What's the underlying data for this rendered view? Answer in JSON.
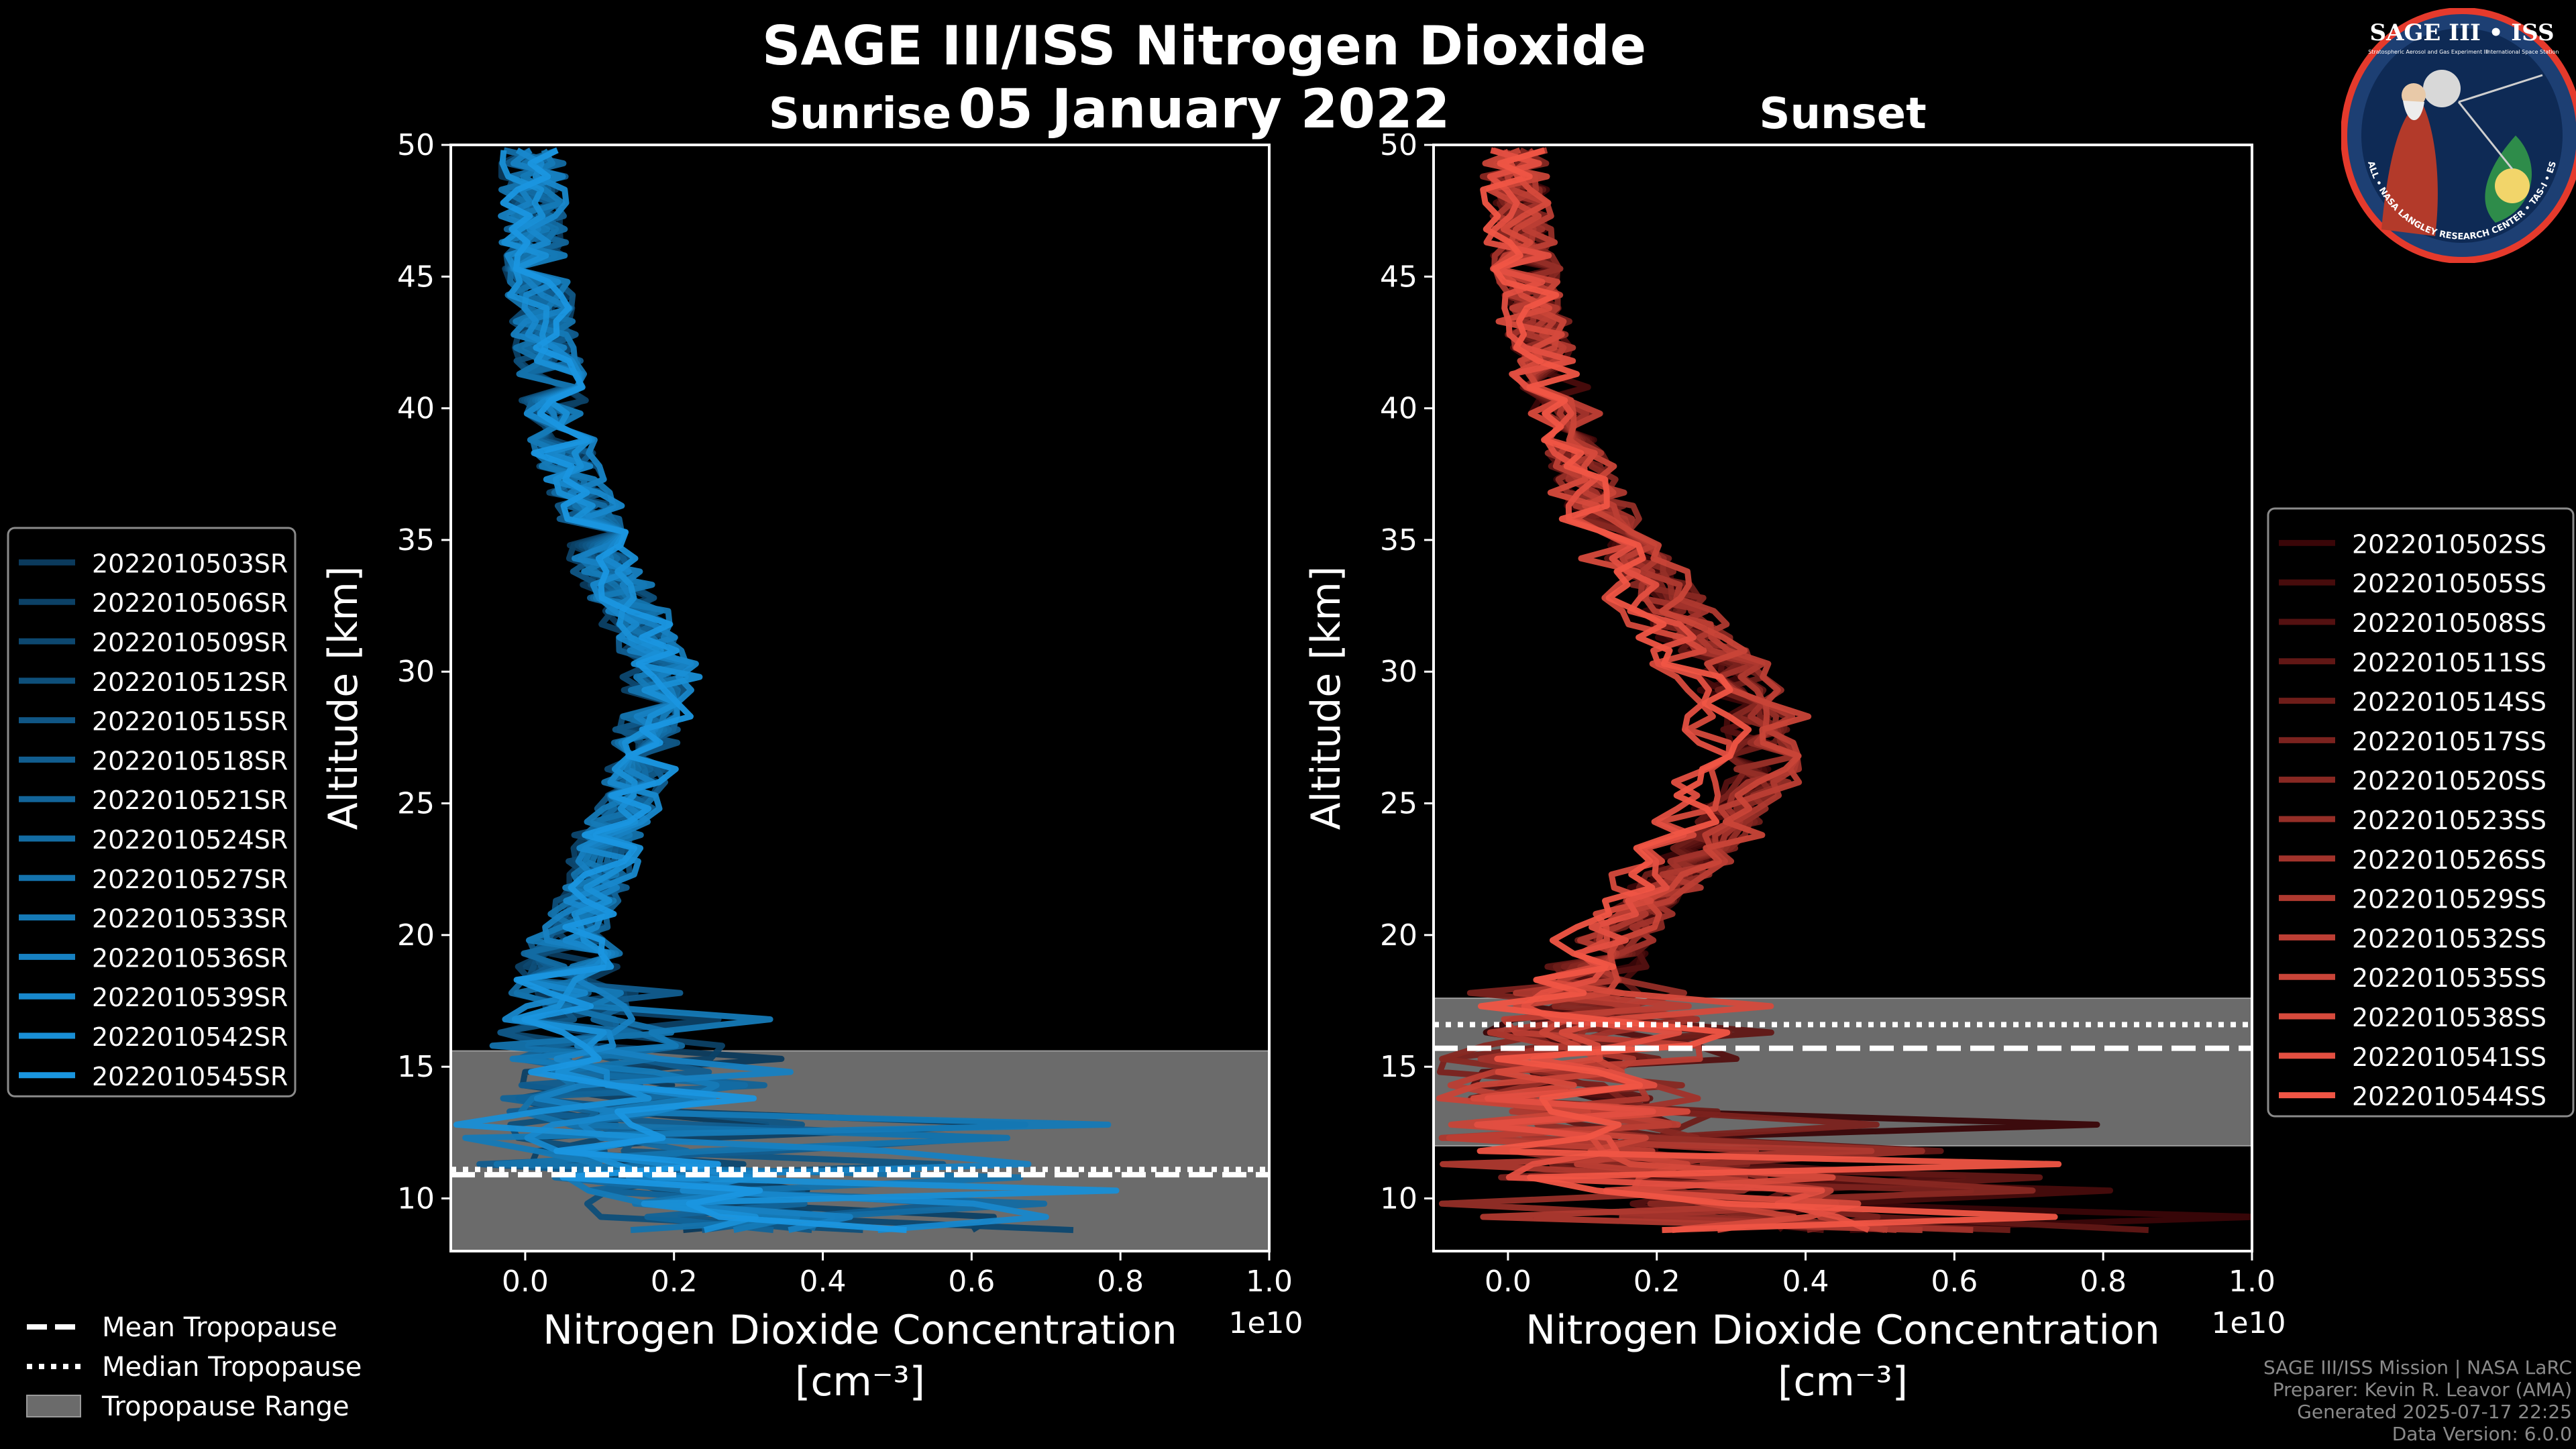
{
  "figure": {
    "title": "SAGE III/ISS Nitrogen Dioxide",
    "date": "05 January 2022",
    "credits": [
      "SAGE III/ISS Mission | NASA LaRC",
      "Preparer: Kevin R. Leavor (AMA)",
      "Generated 2025-07-17 22:25",
      "Data Version: 6.0.0"
    ],
    "logo": {
      "title": "SAGE III • ISS",
      "subtitle": "Stratospheric Aerosol and Gas Experiment III",
      "subtitle2": "International Space Station",
      "ring_text": "BALL • NASA LANGLEY RESEARCH CENTER • TAS-I • ESA"
    },
    "tropopause_legend": [
      {
        "label": "Mean Tropopause",
        "style": "dashed"
      },
      {
        "label": "Median Tropopause",
        "style": "dotted"
      },
      {
        "label": "Tropopause Range",
        "style": "patch"
      }
    ]
  },
  "chart_data": [
    {
      "type": "line",
      "panel": "sunrise",
      "title": "Sunrise",
      "xlabel": "Nitrogen Dioxide Concentration",
      "xunit": "[cm⁻³]",
      "ylabel": "Altitude [km]",
      "offset_text": "1e10",
      "xlim": [
        -0.1,
        1.0
      ],
      "ylim": [
        8,
        50
      ],
      "xticks": [
        0.0,
        0.2,
        0.4,
        0.6,
        0.8,
        1.0
      ],
      "xtick_labels": [
        "0.0",
        "0.2",
        "0.4",
        "0.6",
        "0.8",
        "1.0"
      ],
      "yticks": [
        10,
        15,
        20,
        25,
        30,
        35,
        40,
        45,
        50
      ],
      "ytick_labels": [
        "10",
        "15",
        "20",
        "25",
        "30",
        "35",
        "40",
        "45",
        "50"
      ],
      "tropopause": {
        "mean_km": 10.9,
        "median_km": 11.1,
        "range_km": [
          8.0,
          15.6
        ]
      },
      "series_color_start": "#0b3a5c",
      "series_color_end": "#1a96e0",
      "mean_profile": {
        "altitude_km": [
          8.5,
          10,
          12,
          14,
          16,
          18,
          20,
          22,
          24,
          26,
          28,
          30,
          32,
          34,
          36,
          38,
          40,
          42,
          44,
          46,
          48,
          50
        ],
        "no2_1e10_cm3": [
          0.3,
          0.2,
          0.12,
          0.08,
          0.05,
          0.05,
          0.06,
          0.09,
          0.11,
          0.14,
          0.16,
          0.17,
          0.14,
          0.1,
          0.08,
          0.05,
          0.04,
          0.03,
          0.02,
          0.01,
          0.01,
          0.01
        ]
      },
      "series": [
        {
          "name": "2022010503SR"
        },
        {
          "name": "2022010506SR"
        },
        {
          "name": "2022010509SR"
        },
        {
          "name": "2022010512SR"
        },
        {
          "name": "2022010515SR"
        },
        {
          "name": "2022010518SR"
        },
        {
          "name": "2022010521SR"
        },
        {
          "name": "2022010524SR"
        },
        {
          "name": "2022010527SR"
        },
        {
          "name": "2022010533SR"
        },
        {
          "name": "2022010536SR"
        },
        {
          "name": "2022010539SR"
        },
        {
          "name": "2022010542SR"
        },
        {
          "name": "2022010545SR"
        }
      ]
    },
    {
      "type": "line",
      "panel": "sunset",
      "title": "Sunset",
      "xlabel": "Nitrogen Dioxide Concentration",
      "xunit": "[cm⁻³]",
      "ylabel": "Altitude [km]",
      "offset_text": "1e10",
      "xlim": [
        -0.1,
        1.0
      ],
      "ylim": [
        8,
        50
      ],
      "xticks": [
        0.0,
        0.2,
        0.4,
        0.6,
        0.8,
        1.0
      ],
      "xtick_labels": [
        "0.0",
        "0.2",
        "0.4",
        "0.6",
        "0.8",
        "1.0"
      ],
      "yticks": [
        10,
        15,
        20,
        25,
        30,
        35,
        40,
        45,
        50
      ],
      "ytick_labels": [
        "10",
        "15",
        "20",
        "25",
        "30",
        "35",
        "40",
        "45",
        "50"
      ],
      "tropopause": {
        "mean_km": 15.7,
        "median_km": 16.6,
        "range_km": [
          12.0,
          17.6
        ]
      },
      "series_color_start": "#3a0608",
      "series_color_end": "#f05545",
      "mean_profile": {
        "altitude_km": [
          8.5,
          10,
          12,
          14,
          16,
          18,
          20,
          22,
          24,
          26,
          28,
          30,
          32,
          34,
          36,
          38,
          40,
          42,
          44,
          46,
          48,
          50
        ],
        "no2_1e10_cm3": [
          0.4,
          0.25,
          0.12,
          0.06,
          0.06,
          0.09,
          0.14,
          0.2,
          0.27,
          0.31,
          0.32,
          0.28,
          0.22,
          0.17,
          0.12,
          0.09,
          0.07,
          0.05,
          0.03,
          0.02,
          0.01,
          0.01
        ]
      },
      "series": [
        {
          "name": "2022010502SS"
        },
        {
          "name": "2022010505SS"
        },
        {
          "name": "2022010508SS"
        },
        {
          "name": "2022010511SS"
        },
        {
          "name": "2022010514SS"
        },
        {
          "name": "2022010517SS"
        },
        {
          "name": "2022010520SS"
        },
        {
          "name": "2022010523SS"
        },
        {
          "name": "2022010526SS"
        },
        {
          "name": "2022010529SS"
        },
        {
          "name": "2022010532SS"
        },
        {
          "name": "2022010535SS"
        },
        {
          "name": "2022010538SS"
        },
        {
          "name": "2022010541SS"
        },
        {
          "name": "2022010544SS"
        }
      ]
    }
  ]
}
